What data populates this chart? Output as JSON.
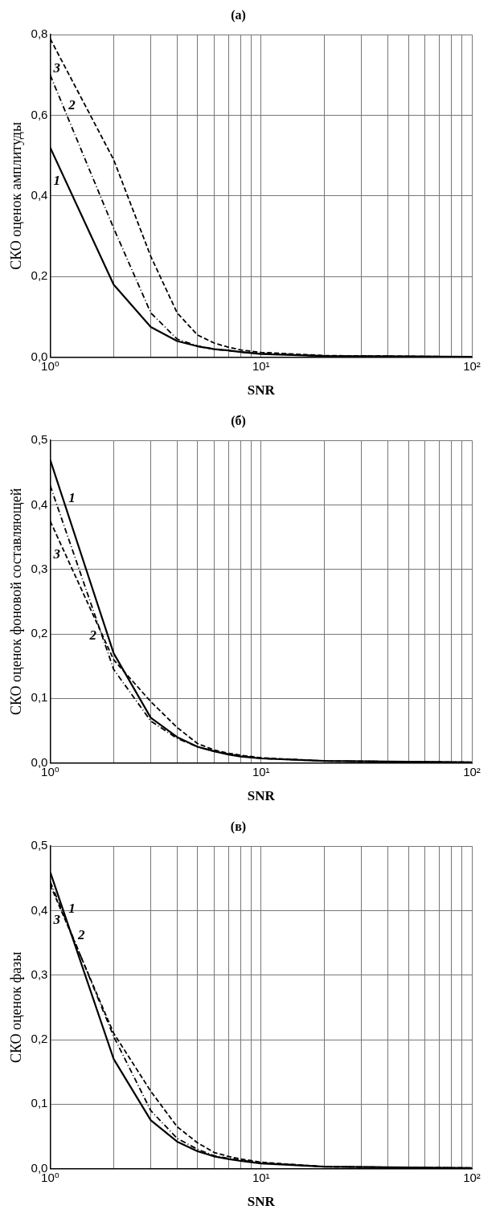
{
  "chart_data": [
    {
      "type": "line",
      "title": "(а)",
      "xlabel": "SNR",
      "ylabel": "СКО оценок амплитуды",
      "log": "x",
      "grid": true,
      "legend": false,
      "marker": "none",
      "x": [
        1,
        2,
        3,
        4,
        5,
        6,
        7,
        8,
        10,
        20,
        100
      ],
      "xlim": [
        1,
        100
      ],
      "xticks": [
        {
          "value": 1,
          "label": "10⁰"
        },
        {
          "value": 2,
          "label": null
        },
        {
          "value": 3,
          "label": null
        },
        {
          "value": 4,
          "label": null
        },
        {
          "value": 5,
          "label": null
        },
        {
          "value": 6,
          "label": null
        },
        {
          "value": 7,
          "label": null
        },
        {
          "value": 8,
          "label": null
        },
        {
          "value": 9,
          "label": null
        },
        {
          "value": 10,
          "label": "10¹"
        },
        {
          "value": 20,
          "label": null
        },
        {
          "value": 30,
          "label": null
        },
        {
          "value": 40,
          "label": null
        },
        {
          "value": 50,
          "label": null
        },
        {
          "value": 60,
          "label": null
        },
        {
          "value": 70,
          "label": null
        },
        {
          "value": 80,
          "label": null
        },
        {
          "value": 90,
          "label": null
        },
        {
          "value": 100,
          "label": "10²"
        }
      ],
      "ylim": [
        0,
        0.8
      ],
      "yticks": [
        {
          "value": 0,
          "label": "0,0"
        },
        {
          "value": 0.2,
          "label": "0,2"
        },
        {
          "value": 0.4,
          "label": "0,4"
        },
        {
          "value": 0.6,
          "label": "0,6"
        },
        {
          "value": 0.8,
          "label": "0,8"
        }
      ],
      "series": [
        {
          "name": "1",
          "color": "#000000",
          "line_style": "solid",
          "values": [
            0.52,
            0.18,
            0.075,
            0.04,
            0.027,
            0.02,
            0.017,
            0.013,
            0.008,
            0.003,
            0.001
          ]
        },
        {
          "name": "2",
          "color": "#000000",
          "line_style": "dashdot",
          "values": [
            0.7,
            0.32,
            0.11,
            0.045,
            0.028,
            0.02,
            0.016,
            0.013,
            0.009,
            0.003,
            0.001
          ]
        },
        {
          "name": "3",
          "color": "#000000",
          "line_style": "dashed",
          "values": [
            0.79,
            0.49,
            0.25,
            0.11,
            0.055,
            0.035,
            0.025,
            0.018,
            0.012,
            0.004,
            0.001
          ]
        }
      ]
    },
    {
      "type": "line",
      "title": "(б)",
      "xlabel": "SNR",
      "ylabel": "СКО оценок фоновой составляющей",
      "log": "x",
      "grid": true,
      "legend": false,
      "marker": "none",
      "x": [
        1,
        2,
        3,
        4,
        5,
        6,
        7,
        8,
        10,
        20,
        100
      ],
      "xlim": [
        1,
        100
      ],
      "xticks": [
        {
          "value": 1,
          "label": "10⁰"
        },
        {
          "value": 2,
          "label": null
        },
        {
          "value": 3,
          "label": null
        },
        {
          "value": 4,
          "label": null
        },
        {
          "value": 5,
          "label": null
        },
        {
          "value": 6,
          "label": null
        },
        {
          "value": 7,
          "label": null
        },
        {
          "value": 8,
          "label": null
        },
        {
          "value": 9,
          "label": null
        },
        {
          "value": 10,
          "label": "10¹"
        },
        {
          "value": 20,
          "label": null
        },
        {
          "value": 30,
          "label": null
        },
        {
          "value": 40,
          "label": null
        },
        {
          "value": 50,
          "label": null
        },
        {
          "value": 60,
          "label": null
        },
        {
          "value": 70,
          "label": null
        },
        {
          "value": 80,
          "label": null
        },
        {
          "value": 90,
          "label": null
        },
        {
          "value": 100,
          "label": "10²"
        }
      ],
      "ylim": [
        0,
        0.5
      ],
      "yticks": [
        {
          "value": 0,
          "label": "0,0"
        },
        {
          "value": 0.1,
          "label": "0,1"
        },
        {
          "value": 0.2,
          "label": "0,2"
        },
        {
          "value": 0.3,
          "label": "0,3"
        },
        {
          "value": 0.4,
          "label": "0,4"
        },
        {
          "value": 0.5,
          "label": "0,5"
        }
      ],
      "series": [
        {
          "name": "1",
          "color": "#000000",
          "line_style": "solid",
          "values": [
            0.47,
            0.17,
            0.07,
            0.04,
            0.025,
            0.018,
            0.013,
            0.01,
            0.007,
            0.003,
            0.001
          ]
        },
        {
          "name": "2",
          "color": "#000000",
          "line_style": "dashdot",
          "values": [
            0.43,
            0.145,
            0.065,
            0.038,
            0.025,
            0.018,
            0.014,
            0.011,
            0.007,
            0.003,
            0.001
          ]
        },
        {
          "name": "3",
          "color": "#000000",
          "line_style": "dashed",
          "values": [
            0.375,
            0.16,
            0.095,
            0.055,
            0.03,
            0.02,
            0.015,
            0.012,
            0.008,
            0.003,
            0.001
          ]
        }
      ]
    },
    {
      "type": "line",
      "title": "(в)",
      "xlabel": "SNR",
      "ylabel": "СКО оценок фазы",
      "log": "x",
      "grid": true,
      "legend": false,
      "marker": "none",
      "x": [
        1,
        2,
        3,
        4,
        5,
        6,
        7,
        8,
        10,
        20,
        100
      ],
      "xlim": [
        1,
        100
      ],
      "xticks": [
        {
          "value": 1,
          "label": "10⁰"
        },
        {
          "value": 2,
          "label": null
        },
        {
          "value": 3,
          "label": null
        },
        {
          "value": 4,
          "label": null
        },
        {
          "value": 5,
          "label": null
        },
        {
          "value": 6,
          "label": null
        },
        {
          "value": 7,
          "label": null
        },
        {
          "value": 8,
          "label": null
        },
        {
          "value": 9,
          "label": null
        },
        {
          "value": 10,
          "label": "10¹"
        },
        {
          "value": 20,
          "label": null
        },
        {
          "value": 30,
          "label": null
        },
        {
          "value": 40,
          "label": null
        },
        {
          "value": 50,
          "label": null
        },
        {
          "value": 60,
          "label": null
        },
        {
          "value": 70,
          "label": null
        },
        {
          "value": 80,
          "label": null
        },
        {
          "value": 90,
          "label": null
        },
        {
          "value": 100,
          "label": "10²"
        }
      ],
      "ylim": [
        0,
        0.5
      ],
      "yticks": [
        {
          "value": 0,
          "label": "0,0"
        },
        {
          "value": 0.1,
          "label": "0,1"
        },
        {
          "value": 0.2,
          "label": "0,2"
        },
        {
          "value": 0.3,
          "label": "0,3"
        },
        {
          "value": 0.4,
          "label": "0,4"
        },
        {
          "value": 0.5,
          "label": "0,5"
        }
      ],
      "series": [
        {
          "name": "1",
          "color": "#000000",
          "line_style": "solid",
          "values": [
            0.46,
            0.17,
            0.075,
            0.042,
            0.027,
            0.019,
            0.015,
            0.012,
            0.008,
            0.003,
            0.001
          ]
        },
        {
          "name": "2",
          "color": "#000000",
          "line_style": "dashdot",
          "values": [
            0.445,
            0.205,
            0.09,
            0.047,
            0.03,
            0.02,
            0.016,
            0.013,
            0.009,
            0.003,
            0.001
          ]
        },
        {
          "name": "3",
          "color": "#000000",
          "line_style": "dashed",
          "values": [
            0.44,
            0.21,
            0.12,
            0.065,
            0.04,
            0.025,
            0.019,
            0.015,
            0.01,
            0.003,
            0.001
          ]
        }
      ]
    }
  ]
}
